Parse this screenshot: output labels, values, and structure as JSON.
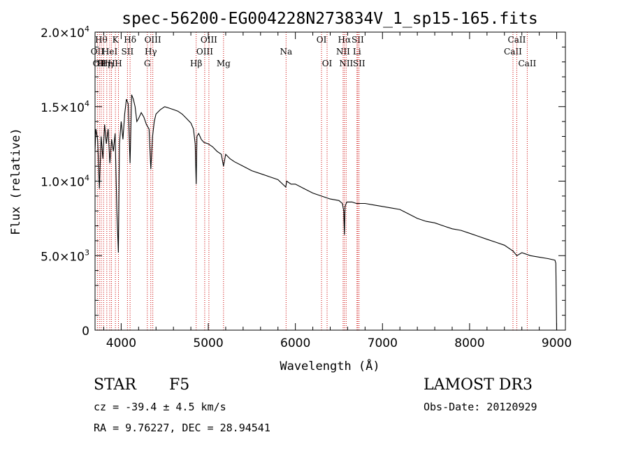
{
  "chart_data": {
    "type": "line",
    "title": "spec-56200-EG004228N273834V_1_sp15-165.fits",
    "xlabel": "Wavelength (Å)",
    "ylabel": "Flux (relative)",
    "xlim": [
      3700,
      9100
    ],
    "ylim": [
      0,
      20000
    ],
    "xticks": [
      4000,
      5000,
      6000,
      7000,
      8000,
      9000
    ],
    "xtick_labels": [
      "4000",
      "5000",
      "6000",
      "7000",
      "8000",
      "9000"
    ],
    "yticks": [
      0,
      5000,
      10000,
      15000,
      20000
    ],
    "ytick_labels": [
      {
        "mant": "0",
        "exp": ""
      },
      {
        "mant": "5.0×10",
        "exp": "3"
      },
      {
        "mant": "1.0×10",
        "exp": "4"
      },
      {
        "mant": "1.5×10",
        "exp": "4"
      },
      {
        "mant": "2.0×10",
        "exp": "4"
      }
    ],
    "series": [
      {
        "name": "flux",
        "x": [
          3700,
          3710,
          3730,
          3750,
          3770,
          3790,
          3810,
          3830,
          3850,
          3870,
          3890,
          3910,
          3930,
          3950,
          3968,
          3980,
          4000,
          4020,
          4040,
          4060,
          4080,
          4102,
          4120,
          4140,
          4160,
          4180,
          4200,
          4230,
          4260,
          4290,
          4320,
          4340,
          4360,
          4380,
          4400,
          4450,
          4500,
          4550,
          4600,
          4650,
          4700,
          4750,
          4800,
          4830,
          4850,
          4861,
          4870,
          4890,
          4920,
          4950,
          5000,
          5050,
          5100,
          5150,
          5175,
          5200,
          5250,
          5300,
          5400,
          5500,
          5600,
          5700,
          5800,
          5890,
          5900,
          5950,
          6000,
          6100,
          6200,
          6300,
          6400,
          6500,
          6540,
          6555,
          6563,
          6570,
          6590,
          6650,
          6700,
          6750,
          6800,
          6900,
          7000,
          7100,
          7200,
          7300,
          7400,
          7500,
          7600,
          7700,
          7800,
          7900,
          8000,
          8100,
          8200,
          8300,
          8400,
          8500,
          8542,
          8600,
          8700,
          8800,
          8900,
          8980,
          8990,
          9000
        ],
        "y": [
          12000,
          13500,
          12800,
          9500,
          13000,
          11500,
          13800,
          12500,
          13500,
          11200,
          12800,
          12000,
          13200,
          8000,
          5200,
          12500,
          14000,
          12800,
          14500,
          15500,
          15200,
          11200,
          15800,
          15500,
          15000,
          14000,
          14200,
          14600,
          14300,
          13800,
          13500,
          10800,
          13000,
          14000,
          14500,
          14800,
          15000,
          14900,
          14800,
          14700,
          14500,
          14200,
          13900,
          13500,
          12500,
          9800,
          13000,
          13200,
          12800,
          12600,
          12500,
          12300,
          12000,
          11800,
          11000,
          11800,
          11500,
          11300,
          11000,
          10700,
          10500,
          10300,
          10100,
          9600,
          10000,
          9800,
          9800,
          9500,
          9200,
          9000,
          8800,
          8700,
          8500,
          8000,
          6400,
          8300,
          8600,
          8600,
          8500,
          8500,
          8500,
          8400,
          8300,
          8200,
          8100,
          7800,
          7500,
          7300,
          7200,
          7000,
          6800,
          6700,
          6500,
          6300,
          6100,
          5900,
          5700,
          5300,
          5000,
          5200,
          5000,
          4900,
          4800,
          4700,
          4500,
          0
        ]
      }
    ],
    "lines": [
      {
        "x": 3727,
        "label": "OII",
        "row": 1
      },
      {
        "x": 3750,
        "label": "OII",
        "row": 2
      },
      {
        "x": 3771,
        "label": "Hθ",
        "row": 0
      },
      {
        "x": 3798,
        "label": "Hη",
        "row": 2
      },
      {
        "x": 3835,
        "label": "Hη",
        "row": 2
      },
      {
        "x": 3869,
        "label": "HeI",
        "row": 1
      },
      {
        "x": 3889,
        "label": "H",
        "row": 2
      },
      {
        "x": 3934,
        "label": "K",
        "row": 0
      },
      {
        "x": 3969,
        "label": "H",
        "row": 2
      },
      {
        "x": 4072,
        "label": "SII",
        "row": 1
      },
      {
        "x": 4102,
        "label": "Hδ",
        "row": 0
      },
      {
        "x": 4300,
        "label": "G",
        "row": 2
      },
      {
        "x": 4340,
        "label": "Hγ",
        "row": 1
      },
      {
        "x": 4363,
        "label": "OIII",
        "row": 0
      },
      {
        "x": 4861,
        "label": "Hβ",
        "row": 2
      },
      {
        "x": 4959,
        "label": "OIII",
        "row": 1
      },
      {
        "x": 5007,
        "label": "OIII",
        "row": 0
      },
      {
        "x": 5175,
        "label": "Mg",
        "row": 2
      },
      {
        "x": 5893,
        "label": "Na",
        "row": 1
      },
      {
        "x": 6300,
        "label": "OI",
        "row": 0
      },
      {
        "x": 6364,
        "label": "OI",
        "row": 2
      },
      {
        "x": 6548,
        "label": "NII",
        "row": 1
      },
      {
        "x": 6563,
        "label": "Hα",
        "row": 0
      },
      {
        "x": 6583,
        "label": "NII",
        "row": 2
      },
      {
        "x": 6707,
        "label": "Li",
        "row": 1
      },
      {
        "x": 6716,
        "label": "SII",
        "row": 0
      },
      {
        "x": 6731,
        "label": "SII",
        "row": 2
      },
      {
        "x": 8498,
        "label": "CaII",
        "row": 1
      },
      {
        "x": 8542,
        "label": "CaII",
        "row": 0
      },
      {
        "x": 8662,
        "label": "CaII",
        "row": 2
      }
    ]
  },
  "info": {
    "class_label": "STAR",
    "subclass": "F5",
    "survey": "LAMOST DR3",
    "cz": "cz = -39.4 ± 4.5 km/s",
    "obs_date": "Obs-Date: 20120929",
    "radec": "RA =   9.76227, DEC =  28.94541"
  },
  "colors": {
    "line": "#000000",
    "marker": "#cc0000",
    "axis": "#000000",
    "background": "#ffffff"
  }
}
